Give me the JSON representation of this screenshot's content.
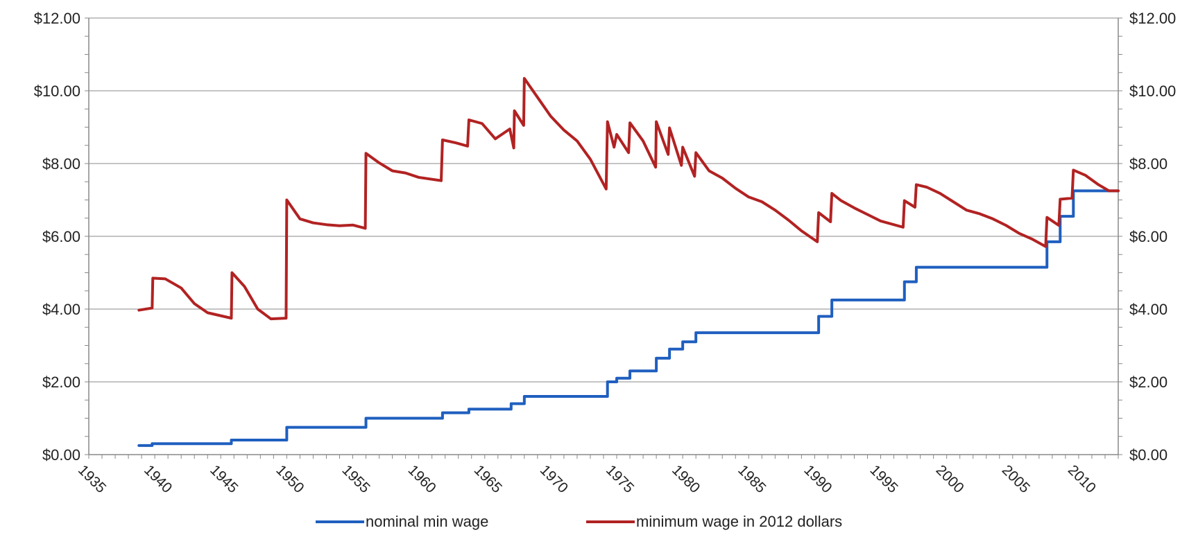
{
  "chart_data": {
    "type": "line",
    "title": "",
    "xlabel": "",
    "ylabel": "",
    "xlim": [
      1935,
      2013
    ],
    "ylim": [
      0,
      12
    ],
    "grid": true,
    "legend_position": "bottom",
    "x_ticks": [
      "1935",
      "1940",
      "1945",
      "1950",
      "1955",
      "1960",
      "1965",
      "1970",
      "1975",
      "1980",
      "1985",
      "1990",
      "1995",
      "2000",
      "2005",
      "2010"
    ],
    "y_ticks_left": [
      "$0.00",
      "$2.00",
      "$4.00",
      "$6.00",
      "$8.00",
      "$10.00",
      "$12.00"
    ],
    "y_ticks_right": [
      "$0.00",
      "$2.00",
      "$4.00",
      "$6.00",
      "$8.00",
      "$10.00",
      "$12.00"
    ],
    "colors": {
      "nominal": "#1f5fbf",
      "real": "#b22222",
      "grid": "#b0b0b0",
      "axis": "#888888"
    },
    "series": [
      {
        "name": "nominal min wage",
        "step": true,
        "points": [
          [
            1938.8,
            0.25
          ],
          [
            1939.8,
            0.3
          ],
          [
            1945.8,
            0.4
          ],
          [
            1950.0,
            0.75
          ],
          [
            1956.0,
            1.0
          ],
          [
            1961.8,
            1.15
          ],
          [
            1963.8,
            1.25
          ],
          [
            1967.0,
            1.4
          ],
          [
            1968.0,
            1.6
          ],
          [
            1974.3,
            2.0
          ],
          [
            1975.0,
            2.1
          ],
          [
            1976.0,
            2.3
          ],
          [
            1978.0,
            2.65
          ],
          [
            1979.0,
            2.9
          ],
          [
            1980.0,
            3.1
          ],
          [
            1981.0,
            3.35
          ],
          [
            1990.3,
            3.8
          ],
          [
            1991.3,
            4.25
          ],
          [
            1996.8,
            4.75
          ],
          [
            1997.7,
            5.15
          ],
          [
            2007.6,
            5.85
          ],
          [
            2008.6,
            6.55
          ],
          [
            2009.6,
            7.25
          ],
          [
            2013.0,
            7.25
          ]
        ]
      },
      {
        "name": "minimum wage in 2012 dollars",
        "step": false,
        "points": [
          [
            1938.8,
            3.97
          ],
          [
            1939.8,
            4.03
          ],
          [
            1939.85,
            4.85
          ],
          [
            1940.8,
            4.83
          ],
          [
            1942.0,
            4.58
          ],
          [
            1943.0,
            4.15
          ],
          [
            1944.0,
            3.9
          ],
          [
            1945.8,
            3.75
          ],
          [
            1945.85,
            5.0
          ],
          [
            1946.8,
            4.62
          ],
          [
            1947.8,
            4.0
          ],
          [
            1948.8,
            3.73
          ],
          [
            1949.95,
            3.75
          ],
          [
            1950.0,
            7.0
          ],
          [
            1951.0,
            6.48
          ],
          [
            1952.0,
            6.37
          ],
          [
            1953.0,
            6.32
          ],
          [
            1954.0,
            6.29
          ],
          [
            1955.0,
            6.31
          ],
          [
            1955.95,
            6.22
          ],
          [
            1956.0,
            8.28
          ],
          [
            1957.0,
            8.02
          ],
          [
            1958.0,
            7.8
          ],
          [
            1959.0,
            7.74
          ],
          [
            1960.0,
            7.62
          ],
          [
            1961.7,
            7.53
          ],
          [
            1961.8,
            8.65
          ],
          [
            1962.8,
            8.57
          ],
          [
            1963.7,
            8.48
          ],
          [
            1963.8,
            9.2
          ],
          [
            1964.8,
            9.1
          ],
          [
            1965.8,
            8.68
          ],
          [
            1966.9,
            8.95
          ],
          [
            1967.2,
            8.43
          ],
          [
            1967.25,
            9.45
          ],
          [
            1967.95,
            9.05
          ],
          [
            1968.0,
            10.34
          ],
          [
            1969.0,
            9.82
          ],
          [
            1970.0,
            9.3
          ],
          [
            1971.0,
            8.92
          ],
          [
            1972.0,
            8.62
          ],
          [
            1973.0,
            8.12
          ],
          [
            1974.2,
            7.3
          ],
          [
            1974.3,
            9.15
          ],
          [
            1974.8,
            8.45
          ],
          [
            1975.0,
            8.8
          ],
          [
            1975.9,
            8.3
          ],
          [
            1976.0,
            9.12
          ],
          [
            1977.0,
            8.62
          ],
          [
            1977.95,
            7.9
          ],
          [
            1978.0,
            9.15
          ],
          [
            1978.9,
            8.25
          ],
          [
            1979.0,
            8.98
          ],
          [
            1979.9,
            7.95
          ],
          [
            1980.0,
            8.45
          ],
          [
            1980.9,
            7.65
          ],
          [
            1981.0,
            8.3
          ],
          [
            1982.0,
            7.8
          ],
          [
            1983.0,
            7.6
          ],
          [
            1984.0,
            7.32
          ],
          [
            1985.0,
            7.08
          ],
          [
            1986.0,
            6.95
          ],
          [
            1987.0,
            6.72
          ],
          [
            1988.0,
            6.45
          ],
          [
            1989.0,
            6.15
          ],
          [
            1990.2,
            5.85
          ],
          [
            1990.3,
            6.65
          ],
          [
            1991.2,
            6.4
          ],
          [
            1991.3,
            7.18
          ],
          [
            1992.0,
            6.98
          ],
          [
            1993.0,
            6.78
          ],
          [
            1994.0,
            6.6
          ],
          [
            1995.0,
            6.42
          ],
          [
            1996.7,
            6.25
          ],
          [
            1996.8,
            6.98
          ],
          [
            1997.6,
            6.8
          ],
          [
            1997.7,
            7.42
          ],
          [
            1998.5,
            7.35
          ],
          [
            1999.5,
            7.18
          ],
          [
            2000.5,
            6.95
          ],
          [
            2001.5,
            6.72
          ],
          [
            2002.5,
            6.62
          ],
          [
            2003.5,
            6.48
          ],
          [
            2004.5,
            6.3
          ],
          [
            2005.5,
            6.08
          ],
          [
            2006.5,
            5.92
          ],
          [
            2007.5,
            5.72
          ],
          [
            2007.6,
            6.52
          ],
          [
            2008.5,
            6.3
          ],
          [
            2008.6,
            7.02
          ],
          [
            2009.5,
            7.05
          ],
          [
            2009.6,
            7.82
          ],
          [
            2010.5,
            7.68
          ],
          [
            2011.5,
            7.42
          ],
          [
            2012.3,
            7.25
          ],
          [
            2013.0,
            7.25
          ]
        ]
      }
    ]
  },
  "legend": {
    "nominal_label": "nominal min wage",
    "real_label": "minimum wage in 2012 dollars"
  }
}
